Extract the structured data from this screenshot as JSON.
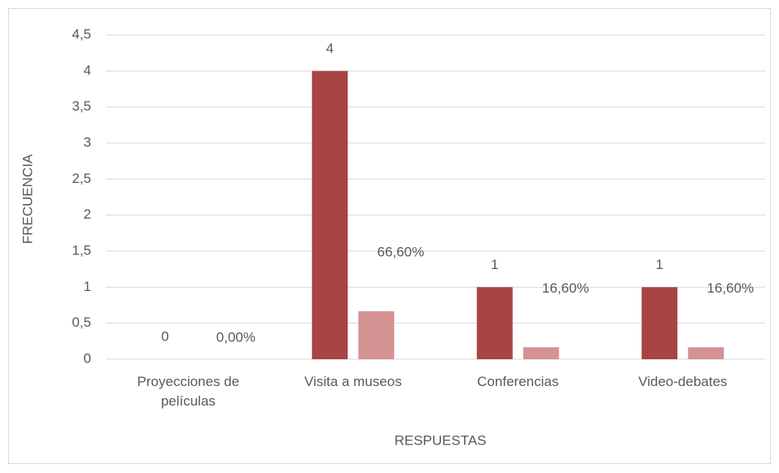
{
  "chart_data": {
    "type": "bar",
    "x_label": "RESPUESTAS",
    "y_label": "FRECUENCIA",
    "categories": [
      "Proyecciones de películas",
      "Visita a museos",
      "Conferencias",
      "Video-debates"
    ],
    "series": [
      {
        "color": "#a84444",
        "values": [
          0,
          4,
          1,
          1
        ]
      },
      {
        "color": "#d49292",
        "values": [
          0,
          0.666,
          0.166,
          0.166
        ],
        "value_labels": [
          "0,00%",
          "66,60%",
          "16,60%",
          "16,60%"
        ]
      }
    ],
    "ylim": [
      0,
      4.5
    ],
    "yticks": [
      0,
      {
        "value": 0.5,
        "label": "0,5"
      },
      1,
      {
        "value": 1.5,
        "label": "1,5"
      },
      2,
      {
        "value": 2.5,
        "label": "2,5"
      },
      3,
      {
        "value": 3.5,
        "label": "3,5"
      },
      4,
      {
        "value": 4.5,
        "label": "4,5"
      }
    ],
    "grid": true
  }
}
